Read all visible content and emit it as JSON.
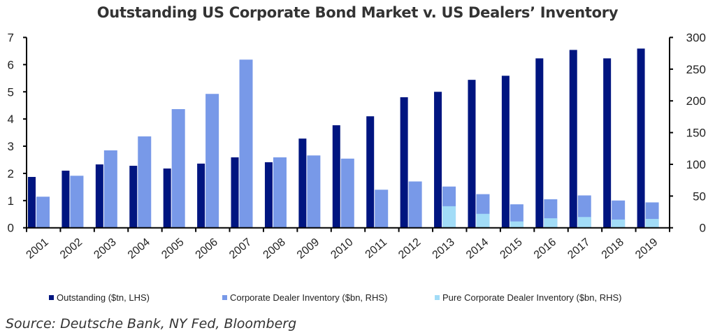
{
  "chart_data": {
    "type": "bar",
    "title": "Outstanding US Corporate Bond Market v. US Dealers’ Inventory",
    "source": "Source: Deutsche Bank, NY Fed, Bloomberg",
    "categories": [
      "2001",
      "2002",
      "2003",
      "2004",
      "2005",
      "2006",
      "2007",
      "2008",
      "2009",
      "2010",
      "2011",
      "2012",
      "2013",
      "2014",
      "2015",
      "2016",
      "2017",
      "2018",
      "2019"
    ],
    "y_left": {
      "range": [
        0,
        7
      ],
      "ticks": [
        "0",
        "1",
        "2",
        "3",
        "4",
        "5",
        "6",
        "7"
      ]
    },
    "y_right": {
      "range": [
        0,
        300
      ],
      "ticks": [
        "0",
        "50",
        "100",
        "150",
        "200",
        "250",
        "300"
      ]
    },
    "grid": false,
    "legend_position": "bottom",
    "series": [
      {
        "name": "Outstanding ($tn, LHS)",
        "axis": "left",
        "color": "#001580",
        "values": [
          1.87,
          2.1,
          2.33,
          2.28,
          2.18,
          2.36,
          2.59,
          2.41,
          3.28,
          3.77,
          4.1,
          4.8,
          5.0,
          5.44,
          5.59,
          6.23,
          6.54,
          6.23,
          6.59
        ]
      },
      {
        "name": "Corporate Dealer Inventory ($bn, RHS)",
        "axis": "right",
        "color": "#7899e8",
        "values": [
          49,
          82,
          122,
          144,
          187,
          211,
          265,
          111,
          114,
          109,
          60,
          73,
          65,
          53,
          37,
          45,
          51,
          43,
          40
        ]
      },
      {
        "name": "Pure Corporate Dealer Inventory ($bn, RHS)",
        "axis": "right",
        "color": "#a2dcf7",
        "values": [
          null,
          null,
          null,
          null,
          null,
          null,
          null,
          null,
          null,
          null,
          null,
          null,
          34,
          22,
          10,
          15,
          17,
          13,
          14
        ]
      }
    ]
  }
}
